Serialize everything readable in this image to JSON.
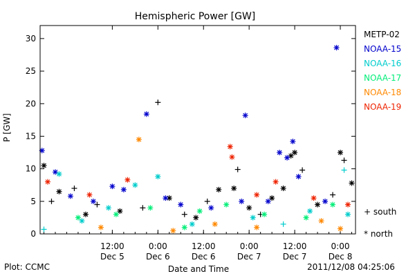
{
  "chart_data": {
    "type": "scatter",
    "title": "Hemispheric Power [GW]",
    "ylabel": "P [GW]",
    "xlabel": "Date and Time",
    "ylim": [
      0,
      32
    ],
    "xlim": [
      "2011-12-04T17:00",
      "2011-12-08T04:00"
    ],
    "y_ticks": [
      0,
      5,
      10,
      15,
      20,
      25,
      30
    ],
    "x_ticks": [
      {
        "time": "2011-12-05T12:00",
        "time_label": "12:00",
        "date_label": "Dec 5"
      },
      {
        "time": "2011-12-06T00:00",
        "time_label": "0:00",
        "date_label": "Dec 6"
      },
      {
        "time": "2011-12-06T12:00",
        "time_label": "12:00",
        "date_label": "Dec 6"
      },
      {
        "time": "2011-12-07T00:00",
        "time_label": "0:00",
        "date_label": "Dec 7"
      },
      {
        "time": "2011-12-07T12:00",
        "time_label": "12:00",
        "date_label": "Dec 7"
      },
      {
        "time": "2011-12-08T00:00",
        "time_label": "0:00",
        "date_label": "Dec 8"
      }
    ],
    "marker_legend": [
      {
        "marker": "+",
        "label": "south"
      },
      {
        "marker": "*",
        "label": "north"
      }
    ],
    "series": [
      {
        "name": "METP-02",
        "color": "#000000",
        "points": [
          {
            "x": "2011-12-04T18:00",
            "y": 10.5,
            "m": "*"
          },
          {
            "x": "2011-12-04T20:00",
            "y": 5.0,
            "m": "+"
          },
          {
            "x": "2011-12-04T22:00",
            "y": 6.5,
            "m": "*"
          },
          {
            "x": "2011-12-05T02:00",
            "y": 7.0,
            "m": "+"
          },
          {
            "x": "2011-12-05T05:00",
            "y": 3.0,
            "m": "*"
          },
          {
            "x": "2011-12-05T08:00",
            "y": 4.5,
            "m": "+"
          },
          {
            "x": "2011-12-05T14:00",
            "y": 3.5,
            "m": "*"
          },
          {
            "x": "2011-12-05T20:00",
            "y": 4.0,
            "m": "+"
          },
          {
            "x": "2011-12-06T00:00",
            "y": 20.2,
            "m": "+"
          },
          {
            "x": "2011-12-06T03:00",
            "y": 5.5,
            "m": "*"
          },
          {
            "x": "2011-12-06T07:00",
            "y": 3.0,
            "m": "+"
          },
          {
            "x": "2011-12-06T10:00",
            "y": 2.5,
            "m": "*"
          },
          {
            "x": "2011-12-06T13:00",
            "y": 5.0,
            "m": "+"
          },
          {
            "x": "2011-12-06T16:00",
            "y": 6.8,
            "m": "*"
          },
          {
            "x": "2011-12-06T20:00",
            "y": 7.0,
            "m": "*"
          },
          {
            "x": "2011-12-06T21:00",
            "y": 9.9,
            "m": "+"
          },
          {
            "x": "2011-12-07T00:00",
            "y": 4.0,
            "m": "*"
          },
          {
            "x": "2011-12-07T03:00",
            "y": 3.0,
            "m": "+"
          },
          {
            "x": "2011-12-07T06:00",
            "y": 5.5,
            "m": "*"
          },
          {
            "x": "2011-12-07T09:00",
            "y": 7.0,
            "m": "*"
          },
          {
            "x": "2011-12-07T11:00",
            "y": 12.0,
            "m": "*"
          },
          {
            "x": "2011-12-07T12:00",
            "y": 12.5,
            "m": "*"
          },
          {
            "x": "2011-12-07T14:00",
            "y": 9.8,
            "m": "+"
          },
          {
            "x": "2011-12-07T18:00",
            "y": 4.5,
            "m": "*"
          },
          {
            "x": "2011-12-07T22:00",
            "y": 6.0,
            "m": "+"
          },
          {
            "x": "2011-12-08T00:00",
            "y": 12.5,
            "m": "*"
          },
          {
            "x": "2011-12-08T01:00",
            "y": 11.3,
            "m": "+"
          },
          {
            "x": "2011-12-08T03:00",
            "y": 7.8,
            "m": "*"
          }
        ]
      },
      {
        "name": "NOAA-15",
        "color": "#0000cc",
        "points": [
          {
            "x": "2011-12-04T17:30",
            "y": 12.8,
            "m": "*"
          },
          {
            "x": "2011-12-04T21:00",
            "y": 9.5,
            "m": "*"
          },
          {
            "x": "2011-12-05T01:00",
            "y": 5.8,
            "m": "*"
          },
          {
            "x": "2011-12-05T07:00",
            "y": 5.0,
            "m": "*"
          },
          {
            "x": "2011-12-05T12:00",
            "y": 7.3,
            "m": "*"
          },
          {
            "x": "2011-12-05T15:00",
            "y": 6.8,
            "m": "*"
          },
          {
            "x": "2011-12-05T21:00",
            "y": 18.4,
            "m": "*"
          },
          {
            "x": "2011-12-06T02:00",
            "y": 5.5,
            "m": "*"
          },
          {
            "x": "2011-12-06T06:00",
            "y": 4.5,
            "m": "*"
          },
          {
            "x": "2011-12-06T14:00",
            "y": 4.0,
            "m": "*"
          },
          {
            "x": "2011-12-06T22:00",
            "y": 5.0,
            "m": "*"
          },
          {
            "x": "2011-12-06T23:00",
            "y": 18.2,
            "m": "*"
          },
          {
            "x": "2011-12-07T05:00",
            "y": 5.0,
            "m": "*"
          },
          {
            "x": "2011-12-07T08:00",
            "y": 12.5,
            "m": "*"
          },
          {
            "x": "2011-12-07T10:00",
            "y": 11.7,
            "m": "*"
          },
          {
            "x": "2011-12-07T11:30",
            "y": 14.2,
            "m": "*"
          },
          {
            "x": "2011-12-07T13:00",
            "y": 8.8,
            "m": "*"
          },
          {
            "x": "2011-12-07T20:00",
            "y": 5.0,
            "m": "*"
          },
          {
            "x": "2011-12-07T23:00",
            "y": 28.6,
            "m": "*"
          }
        ]
      },
      {
        "name": "NOAA-16",
        "color": "#00cccc",
        "points": [
          {
            "x": "2011-12-04T18:00",
            "y": 0.7,
            "m": "+"
          },
          {
            "x": "2011-12-04T22:00",
            "y": 9.2,
            "m": "*"
          },
          {
            "x": "2011-12-05T04:00",
            "y": 2.0,
            "m": "*"
          },
          {
            "x": "2011-12-05T11:00",
            "y": 4.0,
            "m": "*"
          },
          {
            "x": "2011-12-05T18:00",
            "y": 7.5,
            "m": "*"
          },
          {
            "x": "2011-12-06T00:00",
            "y": 8.8,
            "m": "*"
          },
          {
            "x": "2011-12-06T09:00",
            "y": 1.5,
            "m": "*"
          },
          {
            "x": "2011-12-07T01:00",
            "y": 2.5,
            "m": "*"
          },
          {
            "x": "2011-12-07T09:00",
            "y": 1.5,
            "m": "+"
          },
          {
            "x": "2011-12-07T16:00",
            "y": 3.5,
            "m": "*"
          },
          {
            "x": "2011-12-08T01:00",
            "y": 9.8,
            "m": "+"
          },
          {
            "x": "2011-12-08T02:00",
            "y": 3.0,
            "m": "*"
          }
        ]
      },
      {
        "name": "NOAA-17",
        "color": "#00ee77",
        "points": [
          {
            "x": "2011-12-05T03:00",
            "y": 2.5,
            "m": "*"
          },
          {
            "x": "2011-12-05T13:00",
            "y": 3.0,
            "m": "*"
          },
          {
            "x": "2011-12-05T22:00",
            "y": 4.0,
            "m": "*"
          },
          {
            "x": "2011-12-06T07:00",
            "y": 1.0,
            "m": "*"
          },
          {
            "x": "2011-12-06T11:00",
            "y": 3.5,
            "m": "*"
          },
          {
            "x": "2011-12-06T18:00",
            "y": 4.5,
            "m": "*"
          },
          {
            "x": "2011-12-07T04:00",
            "y": 3.0,
            "m": "*"
          },
          {
            "x": "2011-12-07T15:00",
            "y": 2.5,
            "m": "*"
          },
          {
            "x": "2011-12-07T22:00",
            "y": 4.5,
            "m": "*"
          }
        ]
      },
      {
        "name": "NOAA-18",
        "color": "#ff8800",
        "points": [
          {
            "x": "2011-12-05T09:00",
            "y": 1.0,
            "m": "*"
          },
          {
            "x": "2011-12-05T19:00",
            "y": 14.5,
            "m": "*"
          },
          {
            "x": "2011-12-06T04:00",
            "y": 0.5,
            "m": "*"
          },
          {
            "x": "2011-12-06T15:00",
            "y": 1.5,
            "m": "*"
          },
          {
            "x": "2011-12-07T02:00",
            "y": 1.0,
            "m": "*"
          },
          {
            "x": "2011-12-07T19:00",
            "y": 2.0,
            "m": "*"
          },
          {
            "x": "2011-12-08T00:00",
            "y": 0.8,
            "m": "*"
          }
        ]
      },
      {
        "name": "NOAA-19",
        "color": "#ee2200",
        "points": [
          {
            "x": "2011-12-04T19:00",
            "y": 8.0,
            "m": "*"
          },
          {
            "x": "2011-12-05T06:00",
            "y": 6.0,
            "m": "*"
          },
          {
            "x": "2011-12-05T16:00",
            "y": 8.3,
            "m": "*"
          },
          {
            "x": "2011-12-06T19:00",
            "y": 13.4,
            "m": "*"
          },
          {
            "x": "2011-12-06T19:30",
            "y": 11.8,
            "m": "*"
          },
          {
            "x": "2011-12-07T02:00",
            "y": 6.0,
            "m": "*"
          },
          {
            "x": "2011-12-07T07:00",
            "y": 8.0,
            "m": "*"
          },
          {
            "x": "2011-12-07T17:00",
            "y": 5.5,
            "m": "*"
          },
          {
            "x": "2011-12-08T02:00",
            "y": 4.5,
            "m": "*"
          }
        ]
      }
    ]
  },
  "footer": {
    "source": "Plot: CCMC",
    "timestamp": "2011/12/08 04:25:06"
  }
}
